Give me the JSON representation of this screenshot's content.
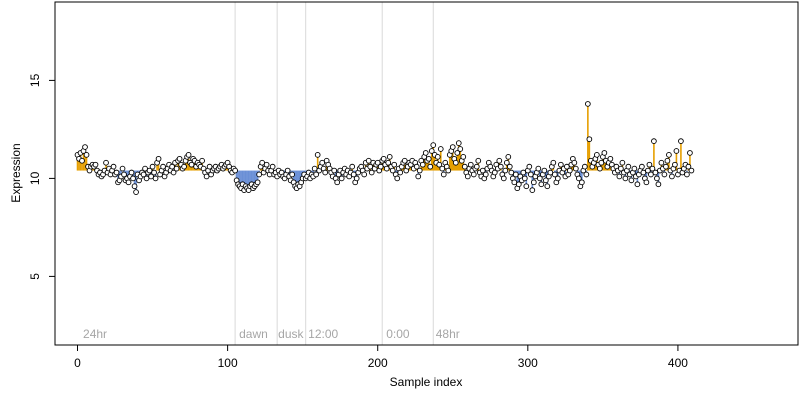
{
  "chart_data": {
    "type": "scatter",
    "xlabel": "Sample index",
    "ylabel": "Expression",
    "xlim": [
      -15,
      480
    ],
    "ylim": [
      1.5,
      19
    ],
    "xticks": [
      0,
      100,
      200,
      300,
      400
    ],
    "yticks": [
      5,
      10,
      15
    ],
    "baseline": 10.4,
    "colors": {
      "above": "#e69f00",
      "below": "#6a8fd6",
      "point_fill": "#ffffff",
      "point_stroke": "#000000",
      "vline": "#d9d9d9"
    },
    "vlines": [
      105,
      133,
      152,
      203,
      237
    ],
    "annotations": [
      {
        "x": 3,
        "text": "24hr"
      },
      {
        "x": 107,
        "text": "dawn"
      },
      {
        "x": 133,
        "text": "dusk"
      },
      {
        "x": 153,
        "text": "12:00"
      },
      {
        "x": 205,
        "text": "0:00"
      },
      {
        "x": 238,
        "text": "48hr"
      }
    ],
    "values": [
      11.2,
      11.0,
      11.3,
      10.9,
      11.4,
      11.6,
      11.2,
      10.6,
      10.4,
      10.6,
      10.7,
      10.6,
      10.7,
      10.4,
      10.2,
      10.3,
      10.1,
      10.2,
      10.4,
      10.8,
      10.3,
      10.5,
      10.2,
      10.4,
      10.6,
      10.2,
      10.3,
      9.8,
      9.9,
      10.1,
      10.5,
      10.2,
      9.9,
      10.0,
      9.8,
      10.1,
      10.3,
      10.0,
      9.6,
      9.3,
      10.2,
      9.9,
      10.1,
      10.3,
      10.2,
      10.5,
      10.0,
      10.3,
      10.4,
      10.1,
      10.6,
      10.3,
      10.0,
      10.8,
      11.0,
      10.2,
      10.4,
      10.6,
      10.1,
      10.3,
      10.5,
      10.7,
      10.4,
      10.6,
      10.3,
      10.8,
      10.5,
      10.9,
      11.0,
      10.7,
      10.5,
      10.6,
      10.9,
      11.1,
      11.2,
      10.8,
      10.7,
      11.0,
      10.9,
      10.6,
      10.8,
      10.7,
      10.6,
      10.9,
      10.5,
      10.3,
      10.1,
      10.4,
      10.6,
      10.2,
      10.4,
      10.5,
      10.6,
      10.4,
      10.5,
      10.6,
      10.7,
      10.5,
      10.6,
      10.7,
      10.8,
      10.6,
      10.4,
      10.3,
      10.5,
      10.4,
      9.9,
      9.7,
      9.6,
      9.5,
      9.7,
      9.4,
      9.6,
      9.5,
      9.4,
      9.6,
      9.7,
      9.5,
      9.6,
      9.7,
      9.8,
      10.2,
      10.6,
      10.8,
      10.3,
      10.5,
      10.7,
      10.4,
      10.2,
      10.4,
      10.6,
      10.2,
      10.3,
      10.1,
      10.4,
      10.2,
      10.3,
      10.1,
      10.0,
      10.2,
      10.4,
      10.1,
      9.9,
      10.2,
      9.8,
      9.6,
      9.5,
      9.7,
      9.6,
      9.8,
      10.0,
      10.2,
      10.0,
      10.1,
      10.3,
      10.0,
      10.2,
      10.1,
      10.5,
      10.2,
      11.2,
      10.4,
      10.6,
      10.8,
      10.5,
      10.3,
      10.9,
      10.7,
      10.5,
      10.3,
      10.1,
      10.4,
      10.0,
      9.8,
      10.2,
      10.4,
      10.0,
      10.3,
      10.5,
      10.2,
      10.4,
      10.1,
      10.3,
      10.6,
      10.2,
      9.8,
      10.0,
      10.3,
      10.5,
      10.6,
      10.4,
      10.2,
      10.8,
      10.5,
      10.9,
      10.6,
      10.3,
      10.8,
      10.5,
      10.7,
      10.8,
      10.4,
      10.6,
      10.9,
      11.0,
      10.7,
      10.5,
      10.8,
      11.1,
      10.6,
      10.4,
      10.7,
      10.2,
      10.0,
      10.5,
      10.3,
      10.6,
      10.8,
      10.9,
      10.4,
      10.6,
      10.8,
      10.7,
      10.9,
      10.5,
      10.8,
      10.6,
      10.1,
      10.4,
      10.9,
      10.7,
      11.1,
      11.3,
      10.9,
      11.0,
      10.6,
      11.4,
      11.7,
      11.2,
      10.8,
      11.1,
      10.7,
      11.5,
      10.5,
      10.2,
      10.8,
      10.6,
      10.4,
      11.2,
      11.4,
      11.6,
      11.0,
      10.8,
      11.3,
      11.8,
      11.5,
      10.9,
      11.1,
      10.6,
      10.3,
      10.1,
      10.5,
      10.7,
      10.4,
      10.2,
      10.5,
      10.6,
      10.9,
      10.3,
      10.1,
      10.4,
      10.0,
      10.2,
      10.5,
      10.8,
      10.6,
      10.4,
      10.1,
      10.3,
      10.7,
      10.5,
      10.9,
      10.6,
      10.2,
      10.0,
      10.4,
      10.8,
      11.1,
      10.6,
      10.3,
      10.0,
      9.8,
      10.2,
      9.5,
      9.7,
      10.1,
      9.9,
      10.3,
      10.0,
      9.6,
      10.4,
      10.6,
      10.2,
      9.4,
      9.8,
      10.1,
      10.3,
      10.5,
      10.0,
      9.7,
      10.2,
      10.4,
      9.9,
      9.6,
      10.1,
      10.3,
      10.6,
      10.8,
      10.2,
      9.8,
      10.0,
      10.4,
      10.7,
      10.3,
      10.5,
      10.1,
      10.6,
      10.2,
      10.4,
      10.7,
      11.0,
      10.8,
      10.5,
      10.2,
      10.0,
      9.6,
      9.8,
      10.4,
      10.6,
      10.2,
      13.8,
      12.0,
      10.9,
      10.6,
      10.8,
      11.0,
      11.2,
      10.7,
      10.5,
      10.8,
      11.1,
      11.3,
      10.9,
      10.6,
      10.8,
      11.0,
      10.7,
      10.5,
      10.3,
      10.6,
      10.4,
      10.1,
      10.5,
      10.8,
      10.3,
      10.0,
      10.4,
      10.6,
      10.2,
      9.9,
      10.3,
      10.5,
      10.1,
      9.7,
      10.2,
      10.4,
      10.6,
      10.3,
      10.0,
      9.8,
      10.4,
      10.7,
      10.2,
      10.5,
      11.9,
      10.3,
      10.0,
      9.7,
      10.4,
      10.8,
      10.5,
      10.2,
      10.6,
      10.9,
      11.2,
      10.4,
      10.1,
      10.5,
      10.7,
      11.4,
      10.2,
      10.4,
      11.9,
      10.3,
      10.5,
      10.7,
      10.2,
      10.6,
      11.3,
      10.4
    ]
  }
}
